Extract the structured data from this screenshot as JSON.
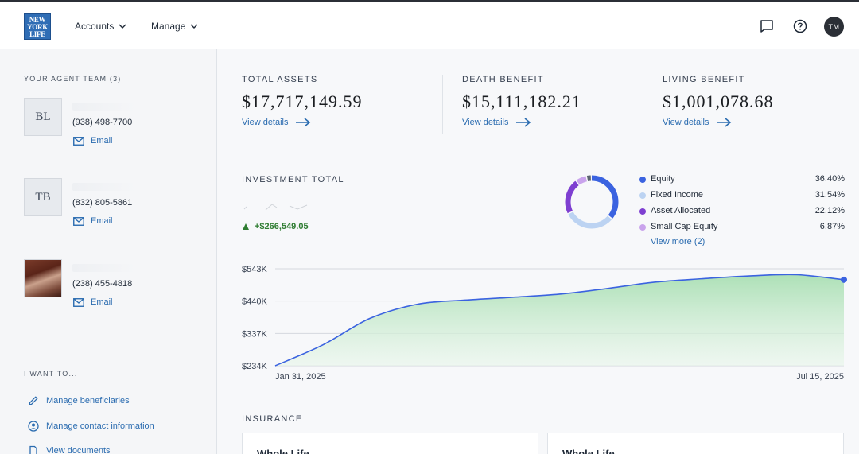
{
  "header": {
    "logo_lines": [
      "NEW",
      "YORK",
      "LIFE"
    ],
    "nav": [
      {
        "label": "Accounts"
      },
      {
        "label": "Manage"
      }
    ],
    "icons": [
      "chat-icon",
      "help-icon"
    ],
    "user_initials": "TM"
  },
  "sidebar": {
    "agent_team_label": "YOUR AGENT TEAM (3)",
    "agents": [
      {
        "initials": "BL",
        "phone": "(938) 498-7700",
        "email_label": "Email"
      },
      {
        "initials": "TB",
        "phone": "(832) 805-5861",
        "email_label": "Email"
      },
      {
        "initials": "",
        "phone": "(238) 455-4818",
        "email_label": "Email"
      }
    ],
    "want_to_label": "I WANT TO...",
    "actions": [
      {
        "label": "Manage beneficiaries",
        "icon": "pencil-icon"
      },
      {
        "label": "Manage contact information",
        "icon": "person-circle-icon"
      },
      {
        "label": "View documents",
        "icon": "document-icon"
      }
    ]
  },
  "summary": {
    "total_assets": {
      "label": "TOTAL ASSETS",
      "value": "$17,717,149.59",
      "link": "View details"
    },
    "death_benefit": {
      "label": "DEATH BENEFIT",
      "value": "$15,111,182.21",
      "link": "View details"
    },
    "living_benefit": {
      "label": "LIVING BENEFIT",
      "value": "$1,001,078.68",
      "link": "View details"
    }
  },
  "investment": {
    "title": "INVESTMENT TOTAL",
    "change": "+$266,549.05",
    "view_more": "View more (2)",
    "allocation": [
      {
        "name": "Equity",
        "pct": "36.40%",
        "value": 36.4,
        "color": "#3b63e0"
      },
      {
        "name": "Fixed Income",
        "pct": "31.54%",
        "value": 31.54,
        "color": "#bcd3f2"
      },
      {
        "name": "Asset Allocated",
        "pct": "22.12%",
        "value": 22.12,
        "color": "#7e3fd1"
      },
      {
        "name": "Small Cap Equity",
        "pct": "6.87%",
        "value": 6.87,
        "color": "#c9a3ec"
      },
      {
        "name": "",
        "pct": "",
        "value": 3.07,
        "color": "#5c6470"
      }
    ]
  },
  "chart_data": {
    "type": "area",
    "x_start_label": "Jan 31, 2025",
    "x_end_label": "Jul 15, 2025",
    "y_tick_labels": [
      "$543K",
      "$440K",
      "$337K",
      "$234K"
    ],
    "y_ticks": [
      543,
      440,
      337,
      234
    ],
    "ylim": [
      234,
      543
    ],
    "units": "thousands of dollars",
    "points": [
      {
        "date": "Jan 31, 2025",
        "value": 234
      },
      {
        "date": "Feb 10, 2025",
        "value": 300
      },
      {
        "date": "Feb 24, 2025",
        "value": 385
      },
      {
        "date": "Mar 10, 2025",
        "value": 430
      },
      {
        "date": "Mar 24, 2025",
        "value": 443
      },
      {
        "date": "Apr 10, 2025",
        "value": 452
      },
      {
        "date": "Apr 28, 2025",
        "value": 462
      },
      {
        "date": "May 10, 2025",
        "value": 480
      },
      {
        "date": "May 24, 2025",
        "value": 500
      },
      {
        "date": "Jun 10, 2025",
        "value": 511
      },
      {
        "date": "Jun 24, 2025",
        "value": 520
      },
      {
        "date": "Jul 5, 2025",
        "value": 524
      },
      {
        "date": "Jul 15, 2025",
        "value": 508
      }
    ],
    "line_color": "#3b63e0",
    "fill_color": "#bde5c3",
    "grid": true
  },
  "insurance": {
    "title": "INSURANCE",
    "cards": [
      {
        "name": "Whole Life"
      },
      {
        "name": "Whole Life"
      }
    ]
  }
}
